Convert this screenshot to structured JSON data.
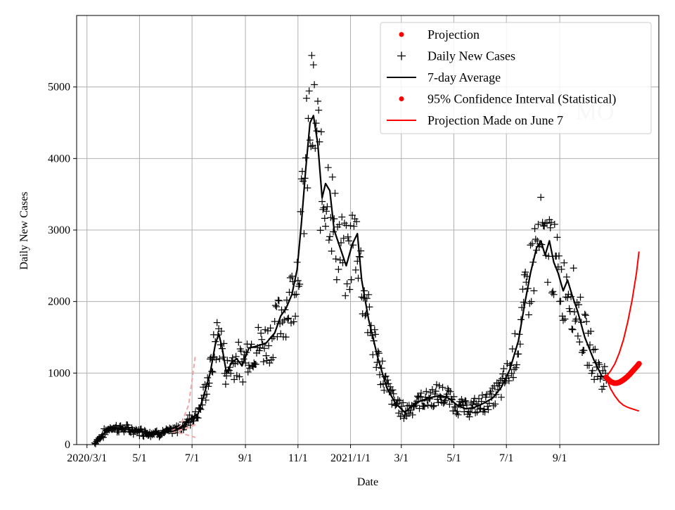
{
  "chart_data": {
    "type": "line",
    "xlabel": "Date",
    "ylabel": "Daily New Cases",
    "xlim": [
      "2020-02-18",
      "2021-12-25"
    ],
    "ylim": [
      0,
      6000
    ],
    "y_ticks": [
      0,
      1000,
      2000,
      3000,
      4000,
      5000
    ],
    "x_ticks": [
      {
        "date": "2020-03-01",
        "label": "2020/3/1"
      },
      {
        "date": "2020-05-01",
        "label": "5/1"
      },
      {
        "date": "2020-07-01",
        "label": "7/1"
      },
      {
        "date": "2020-09-01",
        "label": "9/1"
      },
      {
        "date": "2020-11-01",
        "label": "11/1"
      },
      {
        "date": "2021-01-01",
        "label": "2021/1/1"
      },
      {
        "date": "2021-03-01",
        "label": "3/1"
      },
      {
        "date": "2021-05-01",
        "label": "5/1"
      },
      {
        "date": "2021-07-01",
        "label": "7/1"
      },
      {
        "date": "2021-09-01",
        "label": "9/1"
      }
    ],
    "grid": true,
    "legend_position": "top-right",
    "watermark": "MO",
    "legend": [
      {
        "label": "Projection",
        "marker": "dot",
        "color": "#ff0000"
      },
      {
        "label": "Daily New Cases",
        "marker": "plus",
        "color": "#000000"
      },
      {
        "label": "7-day Average",
        "marker": "line",
        "color": "#000000"
      },
      {
        "label": "95% Confidence Interval (Statistical)",
        "marker": "dot",
        "color": "#ff0000"
      },
      {
        "label": "Projection Made on June 7",
        "marker": "line",
        "color": "#ff0000"
      }
    ],
    "series": [
      {
        "name": "7-day Average",
        "color": "#000000",
        "points": [
          [
            "2020-03-10",
            20
          ],
          [
            "2020-03-20",
            150
          ],
          [
            "2020-03-28",
            240
          ],
          [
            "2020-04-10",
            225
          ],
          [
            "2020-04-25",
            195
          ],
          [
            "2020-05-10",
            170
          ],
          [
            "2020-05-25",
            165
          ],
          [
            "2020-06-10",
            190
          ],
          [
            "2020-06-20",
            260
          ],
          [
            "2020-07-01",
            380
          ],
          [
            "2020-07-08",
            430
          ],
          [
            "2020-07-15",
            700
          ],
          [
            "2020-07-22",
            1000
          ],
          [
            "2020-07-28",
            1400
          ],
          [
            "2020-08-01",
            1550
          ],
          [
            "2020-08-05",
            1350
          ],
          [
            "2020-08-10",
            1000
          ],
          [
            "2020-08-16",
            1150
          ],
          [
            "2020-08-22",
            1200
          ],
          [
            "2020-08-28",
            1100
          ],
          [
            "2020-09-05",
            1350
          ],
          [
            "2020-09-15",
            1380
          ],
          [
            "2020-09-25",
            1420
          ],
          [
            "2020-10-05",
            1560
          ],
          [
            "2020-10-12",
            1800
          ],
          [
            "2020-10-18",
            1900
          ],
          [
            "2020-10-25",
            2100
          ],
          [
            "2020-10-31",
            2450
          ],
          [
            "2020-11-05",
            3100
          ],
          [
            "2020-11-10",
            3850
          ],
          [
            "2020-11-15",
            4500
          ],
          [
            "2020-11-19",
            4600
          ],
          [
            "2020-11-24",
            4200
          ],
          [
            "2020-11-29",
            3450
          ],
          [
            "2020-12-03",
            3650
          ],
          [
            "2020-12-08",
            3550
          ],
          [
            "2020-12-13",
            3000
          ],
          [
            "2020-12-20",
            2750
          ],
          [
            "2020-12-27",
            2500
          ],
          [
            "2021-01-03",
            2800
          ],
          [
            "2021-01-09",
            2950
          ],
          [
            "2021-01-14",
            2300
          ],
          [
            "2021-01-22",
            1750
          ],
          [
            "2021-02-02",
            1200
          ],
          [
            "2021-02-12",
            800
          ],
          [
            "2021-02-22",
            580
          ],
          [
            "2021-03-05",
            450
          ],
          [
            "2021-03-15",
            560
          ],
          [
            "2021-03-25",
            620
          ],
          [
            "2021-04-05",
            660
          ],
          [
            "2021-04-15",
            690
          ],
          [
            "2021-04-25",
            650
          ],
          [
            "2021-05-05",
            550
          ],
          [
            "2021-05-15",
            500
          ],
          [
            "2021-05-25",
            520
          ],
          [
            "2021-06-05",
            580
          ],
          [
            "2021-06-15",
            650
          ],
          [
            "2021-06-25",
            800
          ],
          [
            "2021-07-05",
            1050
          ],
          [
            "2021-07-15",
            1450
          ],
          [
            "2021-07-22",
            1950
          ],
          [
            "2021-07-29",
            2400
          ],
          [
            "2021-08-05",
            2750
          ],
          [
            "2021-08-10",
            2850
          ],
          [
            "2021-08-15",
            2650
          ],
          [
            "2021-08-20",
            2850
          ],
          [
            "2021-08-25",
            2550
          ],
          [
            "2021-08-30",
            2400
          ],
          [
            "2021-09-05",
            2150
          ],
          [
            "2021-09-10",
            2300
          ],
          [
            "2021-09-15",
            2100
          ],
          [
            "2021-09-22",
            1850
          ],
          [
            "2021-09-30",
            1500
          ],
          [
            "2021-10-10",
            1200
          ],
          [
            "2021-10-20",
            950
          ],
          [
            "2021-10-25",
            930
          ]
        ]
      },
      {
        "name": "Projection",
        "color": "#ff0000",
        "points": [
          [
            "2021-10-25",
            940
          ],
          [
            "2021-10-28",
            900
          ],
          [
            "2021-10-31",
            875
          ],
          [
            "2021-11-03",
            860
          ],
          [
            "2021-11-06",
            860
          ],
          [
            "2021-11-09",
            870
          ],
          [
            "2021-11-12",
            890
          ],
          [
            "2021-11-15",
            915
          ],
          [
            "2021-11-18",
            945
          ],
          [
            "2021-11-21",
            980
          ],
          [
            "2021-11-24",
            1020
          ],
          [
            "2021-11-27",
            1060
          ],
          [
            "2021-11-30",
            1100
          ],
          [
            "2021-12-02",
            1130
          ]
        ]
      },
      {
        "name": "95% Confidence Interval (Statistical)",
        "color": "#ff0000",
        "upper": [
          [
            "2021-10-25",
            950
          ],
          [
            "2021-10-30",
            1030
          ],
          [
            "2021-11-04",
            1130
          ],
          [
            "2021-11-09",
            1280
          ],
          [
            "2021-11-14",
            1470
          ],
          [
            "2021-11-19",
            1720
          ],
          [
            "2021-11-24",
            2020
          ],
          [
            "2021-11-29",
            2400
          ],
          [
            "2021-12-02",
            2700
          ]
        ],
        "lower": [
          [
            "2021-10-25",
            930
          ],
          [
            "2021-10-30",
            780
          ],
          [
            "2021-11-04",
            680
          ],
          [
            "2021-11-09",
            600
          ],
          [
            "2021-11-14",
            550
          ],
          [
            "2021-11-19",
            520
          ],
          [
            "2021-11-24",
            500
          ],
          [
            "2021-11-29",
            480
          ],
          [
            "2021-12-02",
            470
          ]
        ]
      },
      {
        "name": "Projection Made on June 7",
        "color": "#f4a5a5",
        "style": "dashed",
        "points": [
          [
            "2020-06-07",
            180
          ],
          [
            "2020-06-17",
            200
          ],
          [
            "2020-06-27",
            240
          ],
          [
            "2020-07-05",
            280
          ]
        ],
        "upper": [
          [
            "2020-06-07",
            190
          ],
          [
            "2020-06-17",
            250
          ],
          [
            "2020-06-27",
            550
          ],
          [
            "2020-07-05",
            1250
          ]
        ],
        "lower": [
          [
            "2020-06-07",
            180
          ],
          [
            "2020-06-17",
            160
          ],
          [
            "2020-06-27",
            130
          ],
          [
            "2020-07-05",
            100
          ]
        ]
      }
    ]
  }
}
